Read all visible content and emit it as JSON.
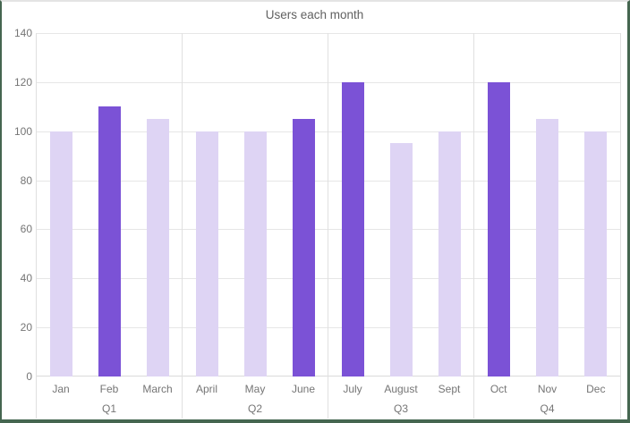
{
  "chart_data": {
    "type": "bar",
    "title": "Users each month",
    "categories": [
      "Jan",
      "Feb",
      "March",
      "April",
      "May",
      "June",
      "July",
      "August",
      "Sept",
      "Oct",
      "Nov",
      "Dec"
    ],
    "values": [
      100,
      110,
      105,
      100,
      100,
      105,
      120,
      95,
      100,
      120,
      105,
      100
    ],
    "bar_colors": [
      "#ded4f4",
      "#7b52d6",
      "#ded4f4",
      "#ded4f4",
      "#ded4f4",
      "#7b52d6",
      "#7b52d6",
      "#ded4f4",
      "#ded4f4",
      "#7b52d6",
      "#ded4f4",
      "#ded4f4"
    ],
    "groups": [
      {
        "label": "Q1",
        "start": 0,
        "end": 2
      },
      {
        "label": "Q2",
        "start": 3,
        "end": 5
      },
      {
        "label": "Q3",
        "start": 6,
        "end": 8
      },
      {
        "label": "Q4",
        "start": 9,
        "end": 11
      }
    ],
    "xlabel": "",
    "ylabel": "",
    "ylim": [
      0,
      140
    ],
    "yticks": [
      0,
      20,
      40,
      60,
      80,
      100,
      120,
      140
    ],
    "grid": true,
    "legend": "none",
    "theme": {
      "base_bar_color": "#ded4f4",
      "highlight_bar_color": "#7b52d6",
      "gridline_color": "#e6e6e6",
      "separator_color": "#e0e0e0",
      "tick_text_color": "#757575",
      "title_text_color": "#616161",
      "frame_border_color": "#456650",
      "background_color": "#ffffff"
    }
  }
}
